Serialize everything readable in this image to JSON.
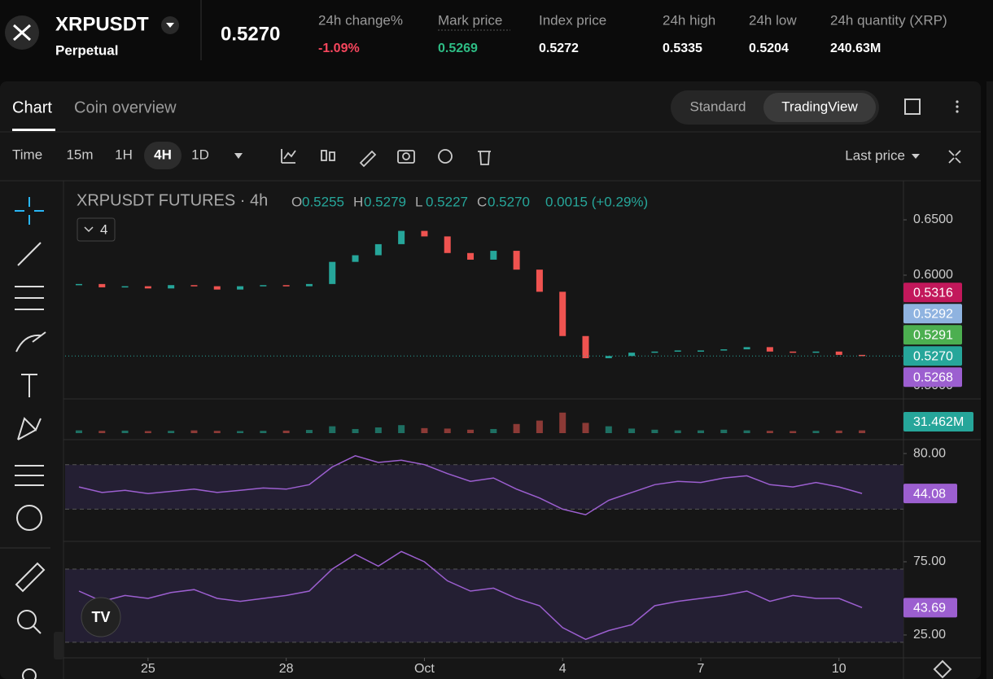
{
  "header": {
    "symbol": "XRPUSDT",
    "contract": "Perpetual",
    "last_price": "0.5270",
    "stats": [
      {
        "label": "24h change%",
        "value": "-1.09%",
        "color": "#f6465d"
      },
      {
        "label": "Mark price",
        "value": "0.5269",
        "color": "#2ebd85"
      },
      {
        "label": "Index price",
        "value": "0.5272",
        "color": "#ffffff"
      },
      {
        "label": "24h high",
        "value": "0.5335",
        "color": "#ffffff"
      },
      {
        "label": "24h low",
        "value": "0.5204",
        "color": "#ffffff"
      },
      {
        "label": "24h quantity (XRP)",
        "value": "240.63M",
        "color": "#ffffff"
      }
    ]
  },
  "tabs": [
    "Chart",
    "Coin overview"
  ],
  "views": [
    "Standard",
    "TradingView"
  ],
  "toolbar": {
    "time": "Time",
    "intervals": [
      "15m",
      "1H",
      "4H",
      "1D"
    ],
    "price_type": "Last price"
  },
  "chart_data": {
    "type": "candlestick",
    "title": "XRPUSDT FUTURES · 4h",
    "ohlc": [
      {
        "key": "O",
        "value": "0.5255"
      },
      {
        "key": "H",
        "value": "0.5279"
      },
      {
        "key": "L",
        "value": "0.5227"
      },
      {
        "key": "C",
        "value": "0.5270"
      }
    ],
    "change": "0.0015 (+0.29%)",
    "indicator_count": "4",
    "x": [
      23.5,
      24,
      24.5,
      25,
      25.5,
      26,
      26.5,
      27,
      27.5,
      28,
      28.5,
      29,
      29.5,
      30,
      30.5,
      31,
      31.5,
      32,
      32.5,
      33,
      33.5,
      34,
      34.5,
      35,
      35.5,
      36,
      36.5,
      37,
      37.5,
      38,
      38.5,
      39,
      39.5,
      40,
      40.5
    ],
    "xlim": [
      23.2,
      41.4
    ],
    "xticks": [
      25,
      28,
      {
        "value": 31,
        "label": "Oct"
      },
      {
        "value": 34,
        "label": "4"
      },
      {
        "value": 37,
        "label": "7"
      },
      {
        "value": 40,
        "label": "10"
      }
    ],
    "values": [
      0.592,
      0.589,
      0.59,
      0.588,
      0.591,
      0.59,
      0.587,
      0.59,
      0.591,
      0.59,
      0.592,
      0.612,
      0.618,
      0.628,
      0.64,
      0.635,
      0.62,
      0.614,
      0.622,
      0.605,
      0.585,
      0.545,
      0.525,
      0.527,
      0.53,
      0.531,
      0.532,
      0.532,
      0.533,
      0.535,
      0.531,
      0.53,
      0.531,
      0.528,
      0.527
    ],
    "up_color": "#26a69a",
    "down_color": "#ef5350",
    "ylim": [
      0.4882,
      0.6853
    ],
    "yticks": [
      {
        "value": 0.65,
        "label": "0.6500"
      },
      {
        "value": 0.6,
        "label": "0.6000"
      },
      {
        "value": 0.5,
        "label": "0.5000"
      }
    ],
    "badges": [
      {
        "value": 0.5316,
        "label": "0.5316",
        "color": "#c2185b"
      },
      {
        "value": 0.5292,
        "label": "0.5292",
        "color": "#8fb3e0"
      },
      {
        "value": 0.5291,
        "label": "0.5291",
        "color": "#4caf50"
      },
      {
        "value": 0.527,
        "label": "0.5270",
        "color": "#26a69a"
      },
      {
        "value": 0.5268,
        "label": "0.5268",
        "color": "#9c5fd0"
      }
    ],
    "volume": {
      "values": [
        12,
        10,
        11,
        9,
        10,
        12,
        10,
        9,
        10,
        11,
        14,
        30,
        18,
        25,
        35,
        22,
        20,
        15,
        18,
        40,
        55,
        90,
        45,
        30,
        20,
        15,
        12,
        12,
        15,
        12,
        10,
        9,
        10,
        11,
        12
      ],
      "ylim": [
        0,
        150
      ],
      "badge": {
        "value": 31.462,
        "label": "31.462M"
      }
    },
    "rsi": {
      "values": [
        50,
        45,
        47,
        44,
        46,
        48,
        45,
        47,
        49,
        48,
        52,
        68,
        78,
        72,
        74,
        70,
        62,
        55,
        58,
        48,
        40,
        30,
        25,
        38,
        45,
        52,
        55,
        54,
        58,
        60,
        52,
        50,
        54,
        50,
        44.08
      ],
      "ylim": [
        1,
        92.5
      ],
      "yticks": [
        {
          "value": 80,
          "label": "80.00"
        }
      ],
      "color": "#9c5fd0",
      "badge": {
        "value": 44.08,
        "label": "44.08"
      }
    },
    "osc": {
      "values": [
        55,
        48,
        52,
        50,
        54,
        56,
        50,
        48,
        50,
        52,
        55,
        70,
        80,
        72,
        82,
        75,
        62,
        55,
        57,
        50,
        45,
        30,
        22,
        28,
        32,
        45,
        48,
        50,
        52,
        55,
        48,
        52,
        50,
        50,
        43.69
      ],
      "ylim": [
        9.4,
        88.9
      ],
      "yticks": [
        {
          "value": 75,
          "label": "75.00"
        },
        {
          "value": 25,
          "label": "25.00"
        }
      ],
      "color": "#9c5fd0",
      "badge": {
        "value": 43.69,
        "label": "43.69"
      }
    }
  }
}
